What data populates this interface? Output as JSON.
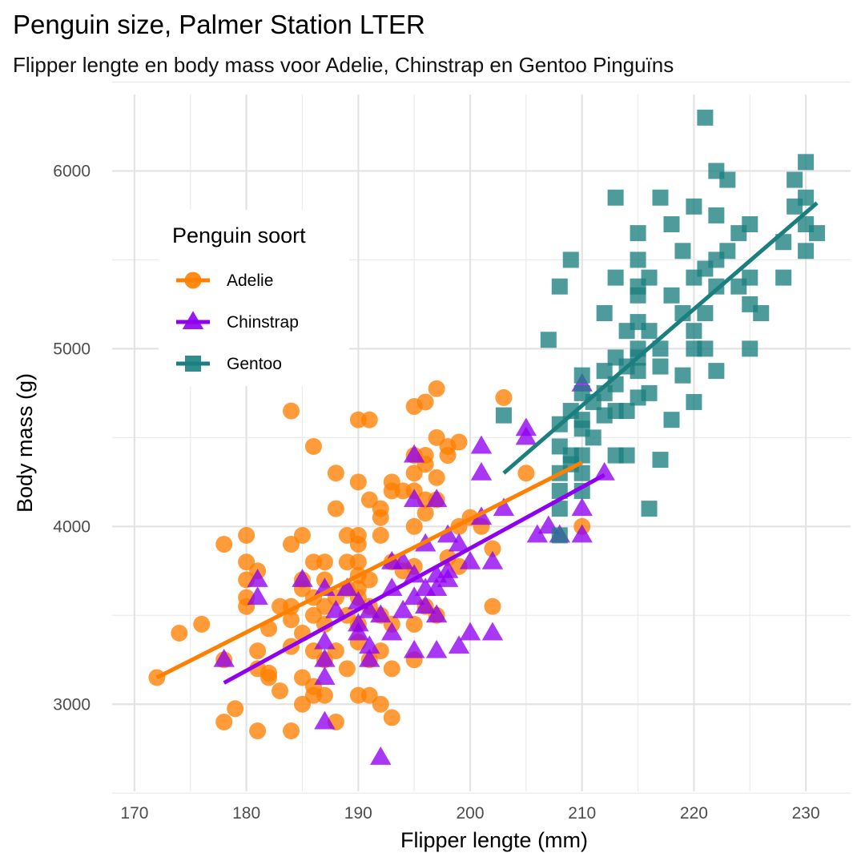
{
  "chart_data": {
    "type": "scatter",
    "title": "Penguin size, Palmer Station LTER",
    "subtitle": "Flipper lengte en body mass voor Adelie, Chinstrap en Gentoo Pinguïns",
    "xlabel": "Flipper lengte (mm)",
    "ylabel": "Body mass (g)",
    "xlim": [
      168,
      234
    ],
    "ylim": [
      2510,
      6430
    ],
    "x_ticks": [
      "170",
      "180",
      "190",
      "200",
      "210",
      "220",
      "230"
    ],
    "y_ticks": [
      "3000",
      "4000",
      "5000",
      "6000"
    ],
    "grid": true,
    "legend": {
      "title": "Penguin soort",
      "position": "top-left"
    },
    "series": [
      {
        "name": "Adelie",
        "color": "#ff7f00",
        "marker": "circle",
        "trend": [
          [
            172,
            3150
          ],
          [
            210,
            4360
          ]
        ],
        "points": [
          [
            172,
            3150
          ],
          [
            174,
            3400
          ],
          [
            176,
            3450
          ],
          [
            178,
            3900
          ],
          [
            178,
            2900
          ],
          [
            178,
            3250
          ],
          [
            179,
            2975
          ],
          [
            180,
            3950
          ],
          [
            180,
            3800
          ],
          [
            180,
            3700
          ],
          [
            180,
            3600
          ],
          [
            180,
            3550
          ],
          [
            181,
            3750
          ],
          [
            181,
            3300
          ],
          [
            181,
            3200
          ],
          [
            181,
            2850
          ],
          [
            182,
            3425
          ],
          [
            182,
            3175
          ],
          [
            182,
            3150
          ],
          [
            183,
            3550
          ],
          [
            183,
            3075
          ],
          [
            184,
            4650
          ],
          [
            184,
            3900
          ],
          [
            184,
            3550
          ],
          [
            184,
            3475
          ],
          [
            184,
            3325
          ],
          [
            184,
            2850
          ],
          [
            185,
            3950
          ],
          [
            185,
            3700
          ],
          [
            185,
            3650
          ],
          [
            185,
            3400
          ],
          [
            185,
            3150
          ],
          [
            185,
            3000
          ],
          [
            186,
            4450
          ],
          [
            186,
            3800
          ],
          [
            186,
            3600
          ],
          [
            186,
            3500
          ],
          [
            186,
            3300
          ],
          [
            186,
            3100
          ],
          [
            186,
            3050
          ],
          [
            187,
            3800
          ],
          [
            187,
            3700
          ],
          [
            187,
            3550
          ],
          [
            187,
            3450
          ],
          [
            187,
            3250
          ],
          [
            187,
            3050
          ],
          [
            188,
            4300
          ],
          [
            188,
            4100
          ],
          [
            188,
            3600
          ],
          [
            188,
            3300
          ],
          [
            188,
            2900
          ],
          [
            189,
            3950
          ],
          [
            189,
            3800
          ],
          [
            189,
            3650
          ],
          [
            189,
            3500
          ],
          [
            189,
            3200
          ],
          [
            190,
            4600
          ],
          [
            190,
            4250
          ],
          [
            190,
            3950
          ],
          [
            190,
            3900
          ],
          [
            190,
            3800
          ],
          [
            190,
            3725
          ],
          [
            190,
            3650
          ],
          [
            190,
            3600
          ],
          [
            190,
            3450
          ],
          [
            190,
            3350
          ],
          [
            190,
            3050
          ],
          [
            191,
            4600
          ],
          [
            191,
            4150
          ],
          [
            191,
            3700
          ],
          [
            191,
            3550
          ],
          [
            191,
            3250
          ],
          [
            191,
            3050
          ],
          [
            192,
            4100
          ],
          [
            192,
            4050
          ],
          [
            192,
            3950
          ],
          [
            192,
            3500
          ],
          [
            192,
            3300
          ],
          [
            192,
            3000
          ],
          [
            193,
            4250
          ],
          [
            193,
            4200
          ],
          [
            193,
            3800
          ],
          [
            193,
            3450
          ],
          [
            193,
            3200
          ],
          [
            193,
            2925
          ],
          [
            194,
            4200
          ],
          [
            194,
            3750
          ],
          [
            195,
            4675
          ],
          [
            195,
            4400
          ],
          [
            195,
            4300
          ],
          [
            195,
            4200
          ],
          [
            195,
            4000
          ],
          [
            195,
            3775
          ],
          [
            195,
            3450
          ],
          [
            195,
            3250
          ],
          [
            196,
            4700
          ],
          [
            196,
            4400
          ],
          [
            196,
            4350
          ],
          [
            196,
            4150
          ],
          [
            196,
            4075
          ],
          [
            196,
            3550
          ],
          [
            197,
            4775
          ],
          [
            197,
            4500
          ],
          [
            197,
            4275
          ],
          [
            197,
            4150
          ],
          [
            197,
            3500
          ],
          [
            198,
            4450
          ],
          [
            198,
            4400
          ],
          [
            198,
            3825
          ],
          [
            199,
            4475
          ],
          [
            199,
            4000
          ],
          [
            199,
            3775
          ],
          [
            200,
            4050
          ],
          [
            201,
            4000
          ],
          [
            202,
            3875
          ],
          [
            202,
            3550
          ],
          [
            203,
            4725
          ],
          [
            205,
            4300
          ],
          [
            210,
            4000
          ]
        ]
      },
      {
        "name": "Chinstrap",
        "color": "#8f00ef",
        "marker": "triangle",
        "trend": [
          [
            178,
            3120
          ],
          [
            212,
            4290
          ]
        ],
        "points": [
          [
            178,
            3250
          ],
          [
            181,
            3700
          ],
          [
            181,
            3600
          ],
          [
            185,
            3700
          ],
          [
            187,
            3650
          ],
          [
            187,
            3350
          ],
          [
            187,
            3250
          ],
          [
            187,
            3150
          ],
          [
            187,
            2900
          ],
          [
            188,
            3525
          ],
          [
            189,
            3650
          ],
          [
            190,
            3575
          ],
          [
            190,
            3450
          ],
          [
            190,
            3400
          ],
          [
            191,
            3525
          ],
          [
            191,
            3325
          ],
          [
            191,
            3250
          ],
          [
            192,
            3500
          ],
          [
            192,
            2700
          ],
          [
            193,
            3800
          ],
          [
            193,
            3650
          ],
          [
            193,
            3400
          ],
          [
            194,
            3800
          ],
          [
            194,
            3525
          ],
          [
            195,
            4400
          ],
          [
            195,
            4150
          ],
          [
            195,
            3725
          ],
          [
            195,
            3600
          ],
          [
            195,
            3300
          ],
          [
            196,
            3900
          ],
          [
            196,
            3650
          ],
          [
            196,
            3550
          ],
          [
            197,
            4150
          ],
          [
            197,
            3725
          ],
          [
            197,
            3650
          ],
          [
            197,
            3500
          ],
          [
            197,
            3300
          ],
          [
            198,
            3950
          ],
          [
            198,
            3750
          ],
          [
            198,
            3700
          ],
          [
            199,
            3900
          ],
          [
            199,
            3325
          ],
          [
            200,
            3800
          ],
          [
            200,
            3400
          ],
          [
            201,
            4450
          ],
          [
            201,
            4300
          ],
          [
            201,
            4050
          ],
          [
            202,
            3800
          ],
          [
            202,
            3400
          ],
          [
            203,
            4100
          ],
          [
            205,
            4550
          ],
          [
            205,
            4500
          ],
          [
            206,
            3950
          ],
          [
            207,
            4000
          ],
          [
            208,
            3950
          ],
          [
            210,
            4800
          ],
          [
            210,
            4100
          ],
          [
            210,
            3950
          ],
          [
            212,
            4300
          ]
        ]
      },
      {
        "name": "Gentoo",
        "color": "#1b7f7f",
        "marker": "square",
        "trend": [
          [
            203,
            4300
          ],
          [
            231,
            5820
          ]
        ],
        "points": [
          [
            203,
            4625
          ],
          [
            207,
            5050
          ],
          [
            208,
            5350
          ],
          [
            208,
            4575
          ],
          [
            208,
            4450
          ],
          [
            208,
            4300
          ],
          [
            208,
            4200
          ],
          [
            208,
            4100
          ],
          [
            208,
            3950
          ],
          [
            209,
            5500
          ],
          [
            209,
            4650
          ],
          [
            209,
            4400
          ],
          [
            209,
            4350
          ],
          [
            210,
            4850
          ],
          [
            210,
            4750
          ],
          [
            210,
            4600
          ],
          [
            210,
            4550
          ],
          [
            210,
            4400
          ],
          [
            210,
            4300
          ],
          [
            210,
            4200
          ],
          [
            211,
            4700
          ],
          [
            211,
            4500
          ],
          [
            212,
            5200
          ],
          [
            212,
            4875
          ],
          [
            212,
            4750
          ],
          [
            212,
            4625
          ],
          [
            213,
            5850
          ],
          [
            213,
            5400
          ],
          [
            213,
            4950
          ],
          [
            213,
            4800
          ],
          [
            213,
            4650
          ],
          [
            213,
            4400
          ],
          [
            214,
            5100
          ],
          [
            214,
            4900
          ],
          [
            214,
            4650
          ],
          [
            214,
            4400
          ],
          [
            215,
            5650
          ],
          [
            215,
            5500
          ],
          [
            215,
            5350
          ],
          [
            215,
            5300
          ],
          [
            215,
            5150
          ],
          [
            215,
            5000
          ],
          [
            215,
            4950
          ],
          [
            215,
            4875
          ],
          [
            215,
            4725
          ],
          [
            216,
            5400
          ],
          [
            216,
            5100
          ],
          [
            216,
            4750
          ],
          [
            216,
            4100
          ],
          [
            217,
            5850
          ],
          [
            217,
            5000
          ],
          [
            217,
            4900
          ],
          [
            217,
            4375
          ],
          [
            218,
            5700
          ],
          [
            218,
            5300
          ],
          [
            218,
            4600
          ],
          [
            219,
            5550
          ],
          [
            219,
            5200
          ],
          [
            219,
            4850
          ],
          [
            220,
            5800
          ],
          [
            220,
            5400
          ],
          [
            220,
            5100
          ],
          [
            220,
            5000
          ],
          [
            220,
            4700
          ],
          [
            221,
            6300
          ],
          [
            221,
            5450
          ],
          [
            221,
            5200
          ],
          [
            221,
            5000
          ],
          [
            222,
            6000
          ],
          [
            222,
            5750
          ],
          [
            222,
            5500
          ],
          [
            222,
            5350
          ],
          [
            222,
            4875
          ],
          [
            223,
            5950
          ],
          [
            223,
            5550
          ],
          [
            224,
            5650
          ],
          [
            224,
            5350
          ],
          [
            225,
            5700
          ],
          [
            225,
            5400
          ],
          [
            225,
            5250
          ],
          [
            225,
            5000
          ],
          [
            226,
            5200
          ],
          [
            228,
            5600
          ],
          [
            228,
            5400
          ],
          [
            229,
            5950
          ],
          [
            229,
            5800
          ],
          [
            230,
            6050
          ],
          [
            230,
            5850
          ],
          [
            230,
            5700
          ],
          [
            230,
            5550
          ],
          [
            231,
            5650
          ]
        ]
      }
    ]
  }
}
